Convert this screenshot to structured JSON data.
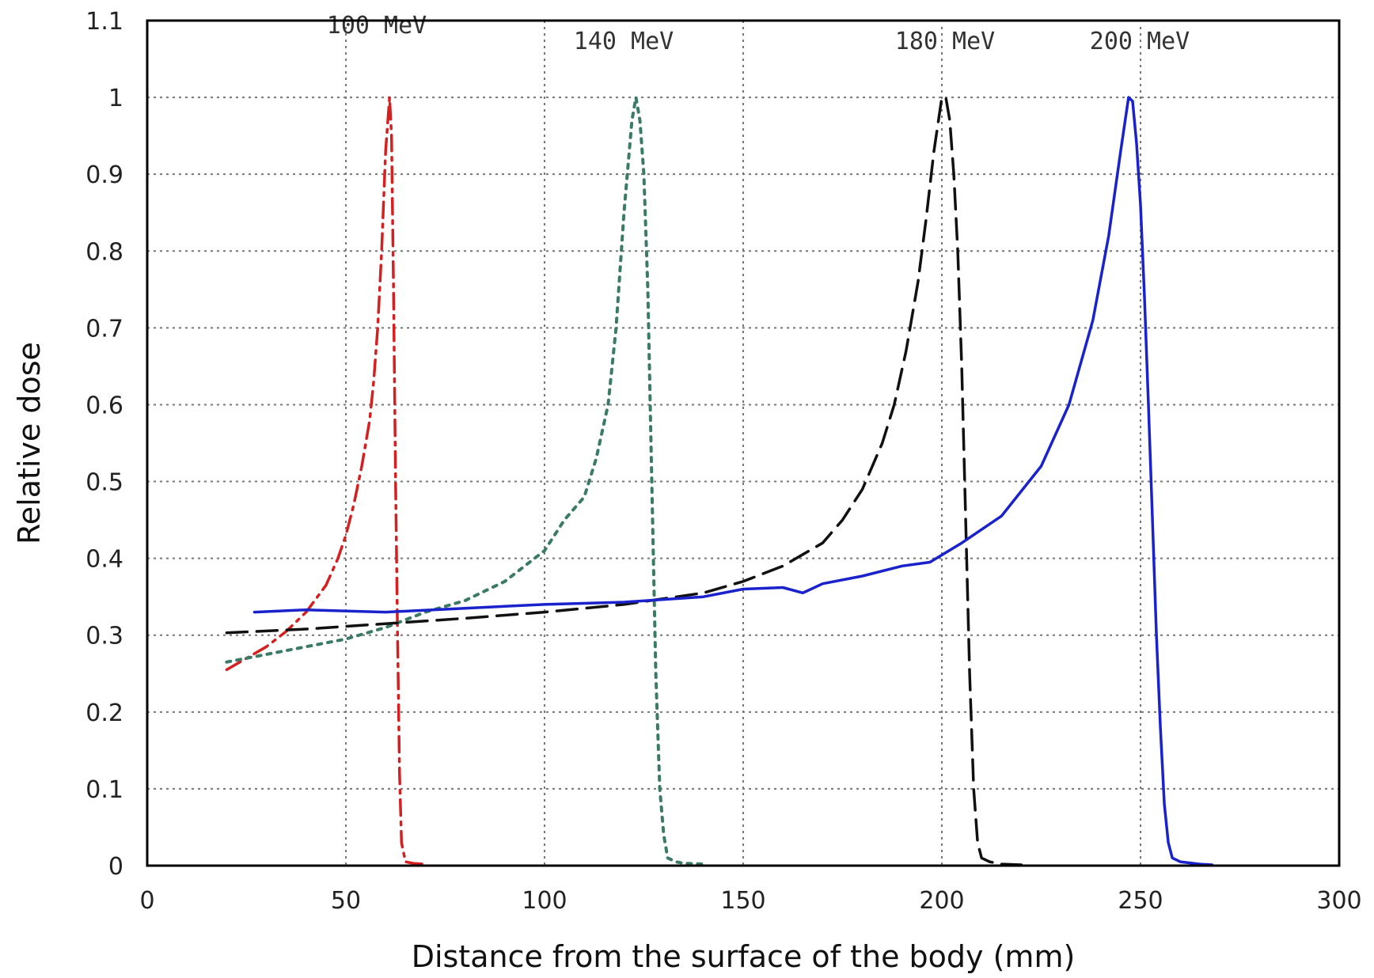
{
  "chart_data": {
    "type": "line",
    "title": "",
    "xlabel": "Distance from the surface of the body (mm)",
    "ylabel": "Relative dose",
    "xlim": [
      0,
      300
    ],
    "ylim": [
      0,
      1.1
    ],
    "xticks": [
      0,
      50,
      100,
      150,
      200,
      250,
      300
    ],
    "xtick_labels": [
      "0",
      "50",
      "100",
      "150",
      "200",
      "250",
      "300"
    ],
    "yticks": [
      0,
      0.1,
      0.2,
      0.3,
      0.4,
      0.5,
      0.6,
      0.7,
      0.8,
      0.9,
      1,
      1.1
    ],
    "ytick_labels": [
      "0",
      "0.1",
      "0.2",
      "0.3",
      "0.4",
      "0.5",
      "0.6",
      "0.7",
      "0.8",
      "0.9",
      "1",
      "1.1"
    ],
    "grid": true,
    "legend": "top (labels above the peaks)",
    "series": [
      {
        "name": "100 MeV",
        "color": "#d42020",
        "dash": "dash-dot",
        "x": [
          20,
          25,
          30,
          35,
          40,
          45,
          48,
          50,
          52,
          54,
          56,
          57,
          58,
          59,
          60,
          61,
          61.5,
          62,
          62.5,
          63,
          63.5,
          64,
          65,
          67,
          70
        ],
        "y": [
          0.255,
          0.27,
          0.285,
          0.305,
          0.33,
          0.365,
          0.4,
          0.43,
          0.47,
          0.52,
          0.58,
          0.63,
          0.7,
          0.8,
          0.93,
          1.0,
          0.95,
          0.75,
          0.5,
          0.3,
          0.12,
          0.03,
          0.005,
          0.003,
          0.002
        ]
      },
      {
        "name": "140 MeV",
        "color": "#3a7a66",
        "dash": "dotted",
        "x": [
          20,
          30,
          40,
          50,
          60,
          70,
          80,
          90,
          100,
          105,
          110,
          113,
          116,
          118,
          120,
          122,
          123,
          124,
          125,
          126,
          127,
          128,
          129,
          130,
          131,
          133,
          135,
          140
        ],
        "y": [
          0.265,
          0.275,
          0.285,
          0.295,
          0.31,
          0.33,
          0.345,
          0.37,
          0.41,
          0.45,
          0.48,
          0.53,
          0.6,
          0.7,
          0.85,
          0.97,
          1.0,
          0.97,
          0.9,
          0.75,
          0.5,
          0.25,
          0.1,
          0.04,
          0.01,
          0.005,
          0.003,
          0.002
        ]
      },
      {
        "name": "180 MeV",
        "color": "#111111",
        "dash": "dashed",
        "x": [
          20,
          40,
          60,
          80,
          100,
          120,
          140,
          150,
          160,
          170,
          175,
          180,
          185,
          188,
          191,
          194,
          196,
          198,
          200,
          201,
          202,
          203,
          204,
          205,
          206,
          207,
          208,
          209,
          210,
          212,
          215,
          220
        ],
        "y": [
          0.303,
          0.308,
          0.315,
          0.322,
          0.33,
          0.34,
          0.355,
          0.37,
          0.39,
          0.42,
          0.45,
          0.49,
          0.55,
          0.6,
          0.67,
          0.76,
          0.84,
          0.93,
          1.0,
          1.0,
          0.97,
          0.9,
          0.8,
          0.65,
          0.45,
          0.25,
          0.1,
          0.03,
          0.01,
          0.005,
          0.002,
          0.001
        ]
      },
      {
        "name": "200 MeV",
        "color": "#1a22cc",
        "dash": "solid",
        "x": [
          27,
          40,
          60,
          80,
          100,
          120,
          140,
          150,
          160,
          165,
          170,
          180,
          190,
          197,
          205,
          215,
          225,
          232,
          238,
          242,
          245,
          247,
          248,
          249,
          250,
          251,
          252,
          253,
          254,
          255,
          256,
          257,
          258,
          260,
          265,
          268
        ],
        "y": [
          0.33,
          0.333,
          0.33,
          0.335,
          0.34,
          0.343,
          0.35,
          0.36,
          0.362,
          0.355,
          0.367,
          0.377,
          0.39,
          0.395,
          0.42,
          0.455,
          0.52,
          0.6,
          0.71,
          0.82,
          0.93,
          1.0,
          0.995,
          0.94,
          0.86,
          0.74,
          0.6,
          0.45,
          0.3,
          0.18,
          0.08,
          0.03,
          0.01,
          0.005,
          0.002,
          0.001
        ]
      }
    ]
  }
}
